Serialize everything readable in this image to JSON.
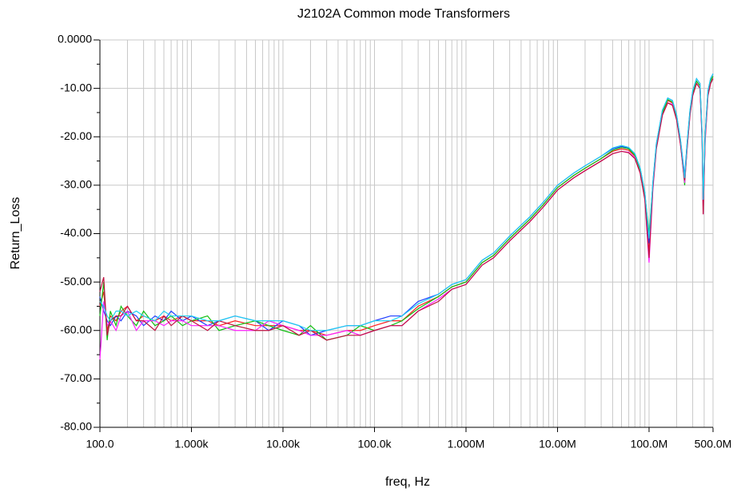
{
  "chart_data": {
    "type": "line",
    "title": "J2102A  Common mode Transformers",
    "xlabel": "freq, Hz",
    "ylabel": "Return_Loss",
    "xscale": "log",
    "grid": true,
    "x_minor_grid": true,
    "xlim": [
      100,
      500000000
    ],
    "xticks": [
      {
        "value": 100,
        "label": "100.0"
      },
      {
        "value": 1000,
        "label": "1.000k"
      },
      {
        "value": 10000,
        "label": "10.00k"
      },
      {
        "value": 100000,
        "label": "100.0k"
      },
      {
        "value": 1000000,
        "label": "1.000M"
      },
      {
        "value": 10000000,
        "label": "10.00M"
      },
      {
        "value": 100000000,
        "label": "100.0M"
      },
      {
        "value": 500000000,
        "label": "500.0M"
      }
    ],
    "ylim": [
      -80,
      0
    ],
    "yticks": [
      {
        "value": 0,
        "label": "0.0000"
      },
      {
        "value": -10,
        "label": "-10.00"
      },
      {
        "value": -20,
        "label": "-20.00"
      },
      {
        "value": -30,
        "label": "-30.00"
      },
      {
        "value": -40,
        "label": "-40.00"
      },
      {
        "value": -50,
        "label": "-50.00"
      },
      {
        "value": -60,
        "label": "-60.00"
      },
      {
        "value": -70,
        "label": "-70.00"
      },
      {
        "value": -80,
        "label": "-80.00"
      }
    ],
    "x": [
      100,
      110,
      120,
      130,
      150,
      170,
      200,
      250,
      300,
      400,
      500,
      600,
      800,
      1000,
      1500,
      2000,
      3000,
      5000,
      7000,
      10000,
      15000,
      20000,
      30000,
      50000,
      70000,
      100000,
      150000,
      200000,
      300000,
      500000,
      700000,
      1000000,
      1500000,
      2000000,
      3000000,
      5000000,
      7000000,
      10000000,
      15000000,
      20000000,
      30000000,
      40000000,
      50000000,
      60000000,
      70000000,
      80000000,
      90000000,
      100000000,
      110000000,
      120000000,
      140000000,
      160000000,
      180000000,
      200000000,
      220000000,
      245000000,
      260000000,
      280000000,
      300000000,
      330000000,
      360000000,
      380000000,
      390000000,
      410000000,
      440000000,
      470000000,
      500000000
    ],
    "series": [
      {
        "color": "#ff2020",
        "values": [
          -55,
          -52,
          -60,
          -57,
          -58,
          -56,
          -55,
          -58,
          -57,
          -58,
          -57,
          -58,
          -57,
          -58,
          -58,
          -59,
          -58,
          -59,
          -59,
          -59,
          -60,
          -60,
          -61,
          -60,
          -60,
          -59,
          -58,
          -58,
          -55,
          -53,
          -51,
          -50,
          -46,
          -44.5,
          -41,
          -37,
          -34,
          -30.5,
          -28,
          -26.5,
          -24.5,
          -23,
          -22.5,
          -22.8,
          -24,
          -27,
          -32,
          -44,
          -30,
          -22,
          -15,
          -12.5,
          -13,
          -16,
          -21,
          -29,
          -22,
          -15,
          -11,
          -8.5,
          -9.5,
          -20,
          -35,
          -20,
          -11,
          -8.5,
          -7.5
        ]
      },
      {
        "color": "#2040ff",
        "values": [
          -53,
          -56,
          -58,
          -59,
          -57,
          -58,
          -56,
          -57,
          -59,
          -57,
          -58,
          -56,
          -58,
          -57,
          -59,
          -58,
          -57,
          -58,
          -60,
          -58,
          -59,
          -61,
          -60,
          -59,
          -59,
          -58,
          -57,
          -57,
          -54,
          -52.5,
          -50.5,
          -49.5,
          -45.5,
          -44,
          -40.5,
          -36.5,
          -33.5,
          -30,
          -27.5,
          -26,
          -24,
          -22.5,
          -22,
          -22.3,
          -23.5,
          -26.5,
          -31.5,
          -42,
          -29.5,
          -21.5,
          -14.5,
          -12,
          -12.5,
          -15.5,
          -20.5,
          -28,
          -21.5,
          -14.5,
          -10.5,
          -8,
          -9,
          -19.5,
          -33,
          -19.5,
          -10.5,
          -8,
          -7
        ]
      },
      {
        "color": "#10c010",
        "values": [
          -57,
          -50,
          -62,
          -56,
          -59,
          -55,
          -57,
          -59,
          -56,
          -59,
          -58,
          -57,
          -59,
          -58,
          -57,
          -60,
          -59,
          -58,
          -59,
          -60,
          -61,
          -59,
          -62,
          -61,
          -59,
          -60,
          -59,
          -58,
          -55.5,
          -53,
          -51,
          -50,
          -46,
          -44.5,
          -41,
          -37,
          -34,
          -30.5,
          -28,
          -26.5,
          -24.5,
          -22.8,
          -22.2,
          -22.5,
          -23.8,
          -26.8,
          -32,
          -40,
          -30,
          -22,
          -15,
          -12.3,
          -12.8,
          -16,
          -21,
          -30,
          -22,
          -15,
          -11,
          -8.5,
          -9.5,
          -20,
          -34,
          -20,
          -11,
          -8.5,
          -7.5
        ]
      },
      {
        "color": "#ff20ff",
        "values": [
          -66,
          -54,
          -59,
          -58,
          -60,
          -57,
          -56,
          -60,
          -58,
          -58,
          -59,
          -58,
          -58,
          -59,
          -59,
          -59,
          -60,
          -60,
          -58,
          -59,
          -60,
          -61,
          -61,
          -60,
          -61,
          -60,
          -59,
          -59,
          -56,
          -53.5,
          -51.5,
          -50.5,
          -46.5,
          -45,
          -41.5,
          -37.5,
          -34.5,
          -31,
          -28.5,
          -27,
          -25,
          -23.5,
          -23,
          -23.2,
          -24.3,
          -27.5,
          -33,
          -46,
          -31,
          -22.5,
          -15.5,
          -13,
          -13.3,
          -16.5,
          -21.5,
          -29.5,
          -22.5,
          -15.5,
          -11.5,
          -9,
          -10,
          -21,
          -36,
          -21,
          -11.5,
          -9,
          -8
        ]
      },
      {
        "color": "#c01040",
        "values": [
          -52,
          -49,
          -61,
          -58,
          -57,
          -57,
          -55,
          -58,
          -58,
          -60,
          -57,
          -59,
          -57,
          -58,
          -60,
          -58,
          -59,
          -60,
          -60,
          -59,
          -61,
          -60,
          -62,
          -61,
          -61,
          -60,
          -59,
          -59,
          -56,
          -54,
          -51.5,
          -50.5,
          -46.5,
          -45,
          -41.5,
          -37.5,
          -34.5,
          -31,
          -28.5,
          -27,
          -25,
          -23.5,
          -23,
          -23.3,
          -24.5,
          -27.5,
          -33,
          -45,
          -30.5,
          -22.5,
          -15.5,
          -13,
          -13.5,
          -16.5,
          -21.5,
          -29,
          -22.5,
          -15.5,
          -11.5,
          -9,
          -10,
          -20.5,
          -36,
          -20.5,
          -11.5,
          -9,
          -8
        ]
      },
      {
        "color": "#20d0f0",
        "values": [
          -54,
          -55,
          -57,
          -58,
          -56,
          -56,
          -57,
          -56,
          -57,
          -58,
          -56,
          -57,
          -57,
          -57,
          -58,
          -58,
          -57,
          -58,
          -58,
          -58,
          -59,
          -60,
          -60,
          -59,
          -59,
          -58,
          -58,
          -57,
          -54.5,
          -52.5,
          -50.5,
          -49.5,
          -45.5,
          -44,
          -40.5,
          -36.5,
          -33.5,
          -30,
          -27.5,
          -26,
          -24,
          -22.3,
          -21.8,
          -22.2,
          -23.5,
          -26.5,
          -31.5,
          -41,
          -29.5,
          -21.5,
          -14.5,
          -12,
          -12.5,
          -15.5,
          -20.5,
          -28.5,
          -21.5,
          -14.5,
          -10.5,
          -8,
          -9,
          -19.5,
          -33,
          -19.5,
          -10.5,
          -8,
          -7
        ]
      }
    ]
  }
}
